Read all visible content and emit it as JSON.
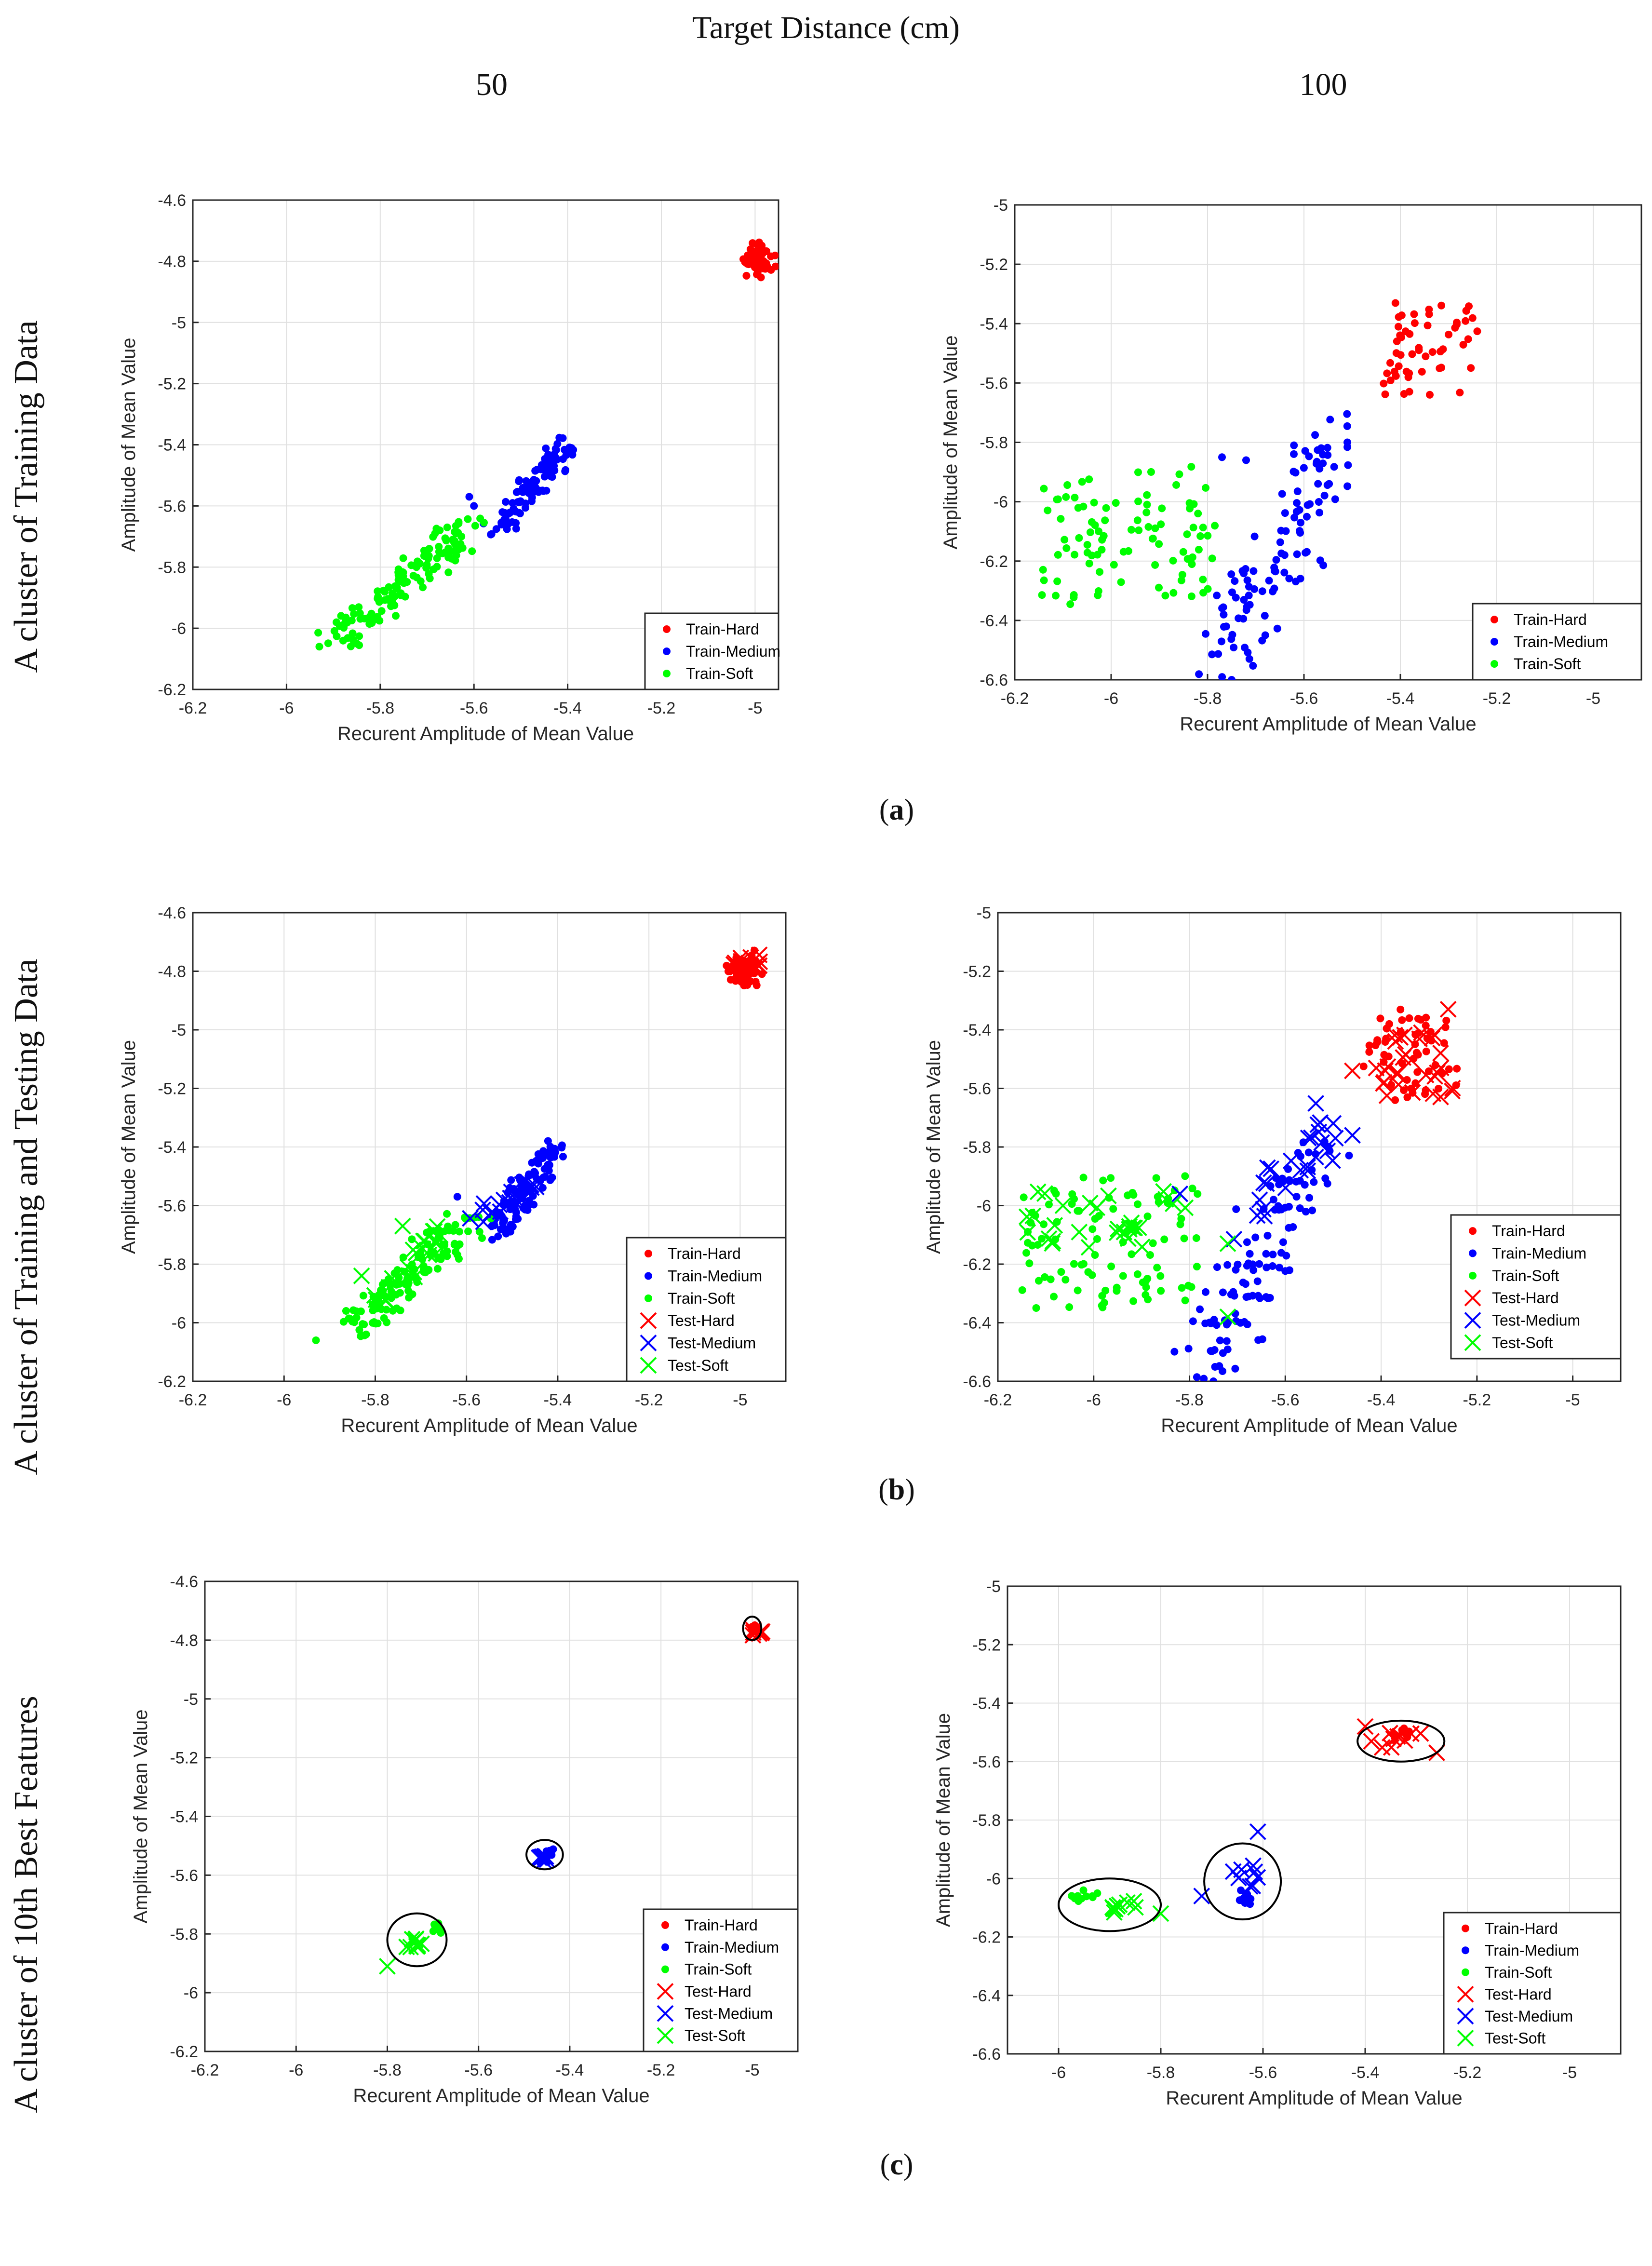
{
  "figure": {
    "top_title": "Target Distance (cm)",
    "column_headers": [
      "50",
      "100"
    ],
    "row_labels": [
      "A cluster of Training Data",
      "A cluster of Training and Testing Data",
      "A cluster of 10th Best Features"
    ],
    "sub_labels": [
      "a",
      "b",
      "c"
    ]
  },
  "colors": {
    "hard": "#ff0000",
    "medium": "#0000ff",
    "soft": "#00ff00",
    "axis": "#262626",
    "grid": "#e0e0e0"
  },
  "chart_data": [
    {
      "id": "a-50",
      "type": "scatter",
      "xlabel": "Recurent Amplitude of Mean Value",
      "ylabel": "Amplitude of Mean Value",
      "xlim": [
        -6.2,
        -4.95
      ],
      "ylim": [
        -6.2,
        -4.6
      ],
      "xticks": [
        -6.2,
        -6,
        -5.8,
        -5.6,
        -5.4,
        -5.2,
        -5
      ],
      "yticks": [
        -6.2,
        -6,
        -5.8,
        -5.6,
        -5.4,
        -5.2,
        -5,
        -4.8,
        -4.6
      ],
      "legend": [
        "Train-Hard",
        "Train-Medium",
        "Train-Soft"
      ],
      "series": [
        {
          "name": "Train-Hard",
          "cls": "hard",
          "marker": "dot",
          "gen": {
            "type": "blob",
            "n": 80,
            "cx": -4.995,
            "cy": -4.795,
            "sx": 0.03,
            "sy": 0.05,
            "seed": 11
          }
        },
        {
          "name": "Train-Medium",
          "cls": "medium",
          "marker": "dot",
          "gen": {
            "type": "line",
            "n": 110,
            "x0": -5.55,
            "y0": -5.68,
            "x1": -5.4,
            "y1": -5.4,
            "jx": 0.035,
            "jy": 0.04,
            "seed": 12
          },
          "extra": [
            [
              -5.61,
              -5.57
            ],
            [
              -5.6,
              -5.6
            ]
          ]
        },
        {
          "name": "Train-Soft",
          "cls": "soft",
          "marker": "dot",
          "gen": {
            "type": "line",
            "n": 130,
            "x0": -5.9,
            "y0": -6.05,
            "x1": -5.6,
            "y1": -5.66,
            "jx": 0.05,
            "jy": 0.05,
            "seed": 13
          },
          "extra": [
            [
              -5.93,
              -6.06
            ],
            [
              -5.85,
              -6.05
            ]
          ]
        }
      ]
    },
    {
      "id": "a-100",
      "type": "scatter",
      "xlabel": "Recurent Amplitude of Mean Value",
      "ylabel": "Amplitude of Mean Value",
      "xlim": [
        -6.2,
        -4.9
      ],
      "ylim": [
        -6.6,
        -5.0
      ],
      "xticks": [
        -6.2,
        -6,
        -5.8,
        -5.6,
        -5.4,
        -5.2,
        -5
      ],
      "yticks": [
        -6.6,
        -6.4,
        -6.2,
        -6,
        -5.8,
        -5.6,
        -5.4,
        -5.2,
        -5
      ],
      "legend": [
        "Train-Hard",
        "Train-Medium",
        "Train-Soft"
      ],
      "series": [
        {
          "name": "Train-Hard",
          "cls": "hard",
          "marker": "dot",
          "gen": {
            "type": "box",
            "n": 55,
            "x0": -5.44,
            "x1": -5.24,
            "y0": -5.64,
            "y1": -5.33,
            "seed": 21
          }
        },
        {
          "name": "Train-Medium",
          "cls": "medium",
          "marker": "dot",
          "gen": {
            "type": "line",
            "n": 110,
            "x0": -5.78,
            "y0": -6.55,
            "x1": -5.53,
            "y1": -5.78,
            "jx": 0.07,
            "jy": 0.12,
            "seed": 22
          },
          "extra": [
            [
              -5.75,
              -6.6
            ],
            [
              -5.51,
              -5.8
            ],
            [
              -5.72,
              -5.86
            ],
            [
              -5.77,
              -5.85
            ]
          ]
        },
        {
          "name": "Train-Soft",
          "cls": "soft",
          "marker": "dot",
          "gen": {
            "type": "box",
            "n": 95,
            "x0": -6.15,
            "x1": -5.78,
            "y0": -6.35,
            "y1": -5.88,
            "seed": 23
          }
        }
      ]
    },
    {
      "id": "b-50",
      "type": "scatter",
      "xlabel": "Recurent Amplitude of Mean Value",
      "ylabel": "Amplitude of Mean Value",
      "xlim": [
        -6.2,
        -4.9
      ],
      "ylim": [
        -6.2,
        -4.6
      ],
      "xticks": [
        -6.2,
        -6,
        -5.8,
        -5.6,
        -5.4,
        -5.2,
        -5
      ],
      "yticks": [
        -6.2,
        -6,
        -5.8,
        -5.6,
        -5.4,
        -5.2,
        -5,
        -4.8,
        -4.6
      ],
      "legend": [
        "Train-Hard",
        "Train-Medium",
        "Train-Soft",
        "Test-Hard",
        "Test-Medium",
        "Test-Soft"
      ],
      "series": [
        {
          "name": "Train-Hard",
          "cls": "hard",
          "marker": "dot",
          "gen": {
            "type": "blob",
            "n": 80,
            "cx": -4.995,
            "cy": -4.795,
            "sx": 0.03,
            "sy": 0.05,
            "seed": 31
          }
        },
        {
          "name": "Train-Medium",
          "cls": "medium",
          "marker": "dot",
          "gen": {
            "type": "line",
            "n": 110,
            "x0": -5.53,
            "y0": -5.68,
            "x1": -5.4,
            "y1": -5.4,
            "jx": 0.035,
            "jy": 0.04,
            "seed": 32
          },
          "extra": [
            [
              -5.62,
              -5.57
            ]
          ]
        },
        {
          "name": "Train-Soft",
          "cls": "soft",
          "marker": "dot",
          "gen": {
            "type": "line",
            "n": 130,
            "x0": -5.85,
            "y0": -6.02,
            "x1": -5.6,
            "y1": -5.66,
            "jx": 0.05,
            "jy": 0.05,
            "seed": 33
          },
          "extra": [
            [
              -5.93,
              -6.06
            ],
            [
              -5.82,
              -6.04
            ]
          ]
        },
        {
          "name": "Test-Hard",
          "cls": "hard",
          "marker": "x",
          "gen": {
            "type": "blob",
            "n": 22,
            "cx": -4.985,
            "cy": -4.775,
            "sx": 0.035,
            "sy": 0.03,
            "seed": 34
          }
        },
        {
          "name": "Test-Medium",
          "cls": "medium",
          "marker": "x",
          "gen": {
            "type": "line",
            "n": 18,
            "x0": -5.58,
            "y0": -5.65,
            "x1": -5.44,
            "y1": -5.53,
            "jx": 0.02,
            "jy": 0.03,
            "seed": 35
          }
        },
        {
          "name": "Test-Soft",
          "cls": "soft",
          "marker": "x",
          "gen": {
            "type": "line",
            "n": 26,
            "x0": -5.83,
            "y0": -5.98,
            "x1": -5.63,
            "y1": -5.66,
            "jx": 0.04,
            "jy": 0.04,
            "seed": 36
          },
          "extra": [
            [
              -5.83,
              -5.84
            ],
            [
              -5.74,
              -5.67
            ]
          ]
        }
      ]
    },
    {
      "id": "b-100",
      "type": "scatter",
      "xlabel": "Recurent Amplitude of Mean Value",
      "ylabel": "Amplitude of Mean Value",
      "xlim": [
        -6.2,
        -4.9
      ],
      "ylim": [
        -6.6,
        -5.0
      ],
      "xticks": [
        -6.2,
        -6,
        -5.8,
        -5.6,
        -5.4,
        -5.2,
        -5
      ],
      "yticks": [
        -6.6,
        -6.4,
        -6.2,
        -6,
        -5.8,
        -5.6,
        -5.4,
        -5.2,
        -5
      ],
      "legend": [
        "Train-Hard",
        "Train-Medium",
        "Train-Soft",
        "Test-Hard",
        "Test-Medium",
        "Test-Soft"
      ],
      "series": [
        {
          "name": "Train-Hard",
          "cls": "hard",
          "marker": "dot",
          "gen": {
            "type": "box",
            "n": 55,
            "x0": -5.44,
            "x1": -5.24,
            "y0": -5.64,
            "y1": -5.33,
            "seed": 41
          }
        },
        {
          "name": "Train-Medium",
          "cls": "medium",
          "marker": "dot",
          "gen": {
            "type": "line",
            "n": 110,
            "x0": -5.78,
            "y0": -6.55,
            "x1": -5.53,
            "y1": -5.78,
            "jx": 0.07,
            "jy": 0.12,
            "seed": 42
          },
          "extra": [
            [
              -5.75,
              -6.6
            ],
            [
              -5.51,
              -5.8
            ]
          ]
        },
        {
          "name": "Train-Soft",
          "cls": "soft",
          "marker": "dot",
          "gen": {
            "type": "box",
            "n": 95,
            "x0": -6.15,
            "x1": -5.78,
            "y0": -6.35,
            "y1": -5.88,
            "seed": 43
          }
        },
        {
          "name": "Test-Hard",
          "cls": "hard",
          "marker": "x",
          "gen": {
            "type": "box",
            "n": 30,
            "x0": -5.42,
            "x1": -5.25,
            "y0": -5.63,
            "y1": -5.4,
            "seed": 44
          },
          "extra": [
            [
              -5.26,
              -5.33
            ],
            [
              -5.46,
              -5.54
            ]
          ]
        },
        {
          "name": "Test-Medium",
          "cls": "medium",
          "marker": "x",
          "gen": {
            "type": "line",
            "n": 26,
            "x0": -5.72,
            "y0": -6.12,
            "x1": -5.5,
            "y1": -5.72,
            "jx": 0.04,
            "jy": 0.08,
            "seed": 45
          },
          "extra": [
            [
              -5.82,
              -5.96
            ],
            [
              -5.46,
              -5.76
            ]
          ]
        },
        {
          "name": "Test-Soft",
          "cls": "soft",
          "marker": "x",
          "gen": {
            "type": "box",
            "n": 30,
            "x0": -6.14,
            "x1": -5.8,
            "y0": -6.15,
            "y1": -5.95,
            "seed": 46
          },
          "extra": [
            [
              -5.72,
              -6.13
            ],
            [
              -5.72,
              -6.38
            ]
          ]
        }
      ]
    },
    {
      "id": "c-50",
      "type": "scatter",
      "xlabel": "Recurent Amplitude of Mean Value",
      "ylabel": "Amplitude of Mean Value",
      "xlim": [
        -6.2,
        -4.9
      ],
      "ylim": [
        -6.2,
        -4.6
      ],
      "xticks": [
        -6.2,
        -6,
        -5.8,
        -5.6,
        -5.4,
        -5.2,
        -5
      ],
      "yticks": [
        -6.2,
        -6,
        -5.8,
        -5.6,
        -5.4,
        -5.2,
        -5,
        -4.8,
        -4.6
      ],
      "legend": [
        "Train-Hard",
        "Train-Medium",
        "Train-Soft",
        "Test-Hard",
        "Test-Medium",
        "Test-Soft"
      ],
      "ellipses": [
        {
          "cx": -5.0,
          "cy": -4.76,
          "rx": 0.02,
          "ry": 0.04
        },
        {
          "cx": -5.455,
          "cy": -5.53,
          "rx": 0.04,
          "ry": 0.05
        },
        {
          "cx": -5.735,
          "cy": -5.82,
          "rx": 0.065,
          "ry": 0.09
        }
      ],
      "series": [
        {
          "name": "Train-Hard",
          "cls": "hard",
          "marker": "dot",
          "gen": {
            "type": "blob",
            "n": 8,
            "cx": -4.995,
            "cy": -4.765,
            "sx": 0.01,
            "sy": 0.015,
            "seed": 51
          }
        },
        {
          "name": "Train-Medium",
          "cls": "medium",
          "marker": "dot",
          "gen": {
            "type": "blob",
            "n": 10,
            "cx": -5.445,
            "cy": -5.525,
            "sx": 0.012,
            "sy": 0.015,
            "seed": 52
          }
        },
        {
          "name": "Train-Soft",
          "cls": "soft",
          "marker": "dot",
          "gen": {
            "type": "blob",
            "n": 10,
            "cx": -5.69,
            "cy": -5.78,
            "sx": 0.015,
            "sy": 0.015,
            "seed": 53
          }
        },
        {
          "name": "Test-Hard",
          "cls": "hard",
          "marker": "x",
          "gen": {
            "type": "blob",
            "n": 8,
            "cx": -4.99,
            "cy": -4.775,
            "sx": 0.015,
            "sy": 0.012,
            "seed": 54
          }
        },
        {
          "name": "Test-Medium",
          "cls": "medium",
          "marker": "x",
          "gen": {
            "type": "blob",
            "n": 10,
            "cx": -5.455,
            "cy": -5.54,
            "sx": 0.015,
            "sy": 0.015,
            "seed": 55
          }
        },
        {
          "name": "Test-Soft",
          "cls": "soft",
          "marker": "x",
          "gen": {
            "type": "blob",
            "n": 10,
            "cx": -5.74,
            "cy": -5.83,
            "sx": 0.025,
            "sy": 0.025,
            "seed": 56
          },
          "extra": [
            [
              -5.8,
              -5.91
            ]
          ]
        }
      ]
    },
    {
      "id": "c-100",
      "type": "scatter",
      "xlabel": "Recurent Amplitude of Mean Value",
      "ylabel": "Amplitude of Mean Value",
      "xlim": [
        -6.1,
        -4.9
      ],
      "ylim": [
        -6.6,
        -5.0
      ],
      "xticks": [
        -6,
        -5.8,
        -5.6,
        -5.4,
        -5.2,
        -5
      ],
      "yticks": [
        -6.6,
        -6.4,
        -6.2,
        -6,
        -5.8,
        -5.6,
        -5.4,
        -5.2,
        -5
      ],
      "legend": [
        "Train-Hard",
        "Train-Medium",
        "Train-Soft",
        "Test-Hard",
        "Test-Medium",
        "Test-Soft"
      ],
      "ellipses": [
        {
          "cx": -5.33,
          "cy": -5.53,
          "rx": 0.085,
          "ry": 0.07
        },
        {
          "cx": -5.64,
          "cy": -6.01,
          "rx": 0.075,
          "ry": 0.13
        },
        {
          "cx": -5.9,
          "cy": -6.09,
          "rx": 0.1,
          "ry": 0.09
        }
      ],
      "series": [
        {
          "name": "Train-Hard",
          "cls": "hard",
          "marker": "dot",
          "gen": {
            "type": "blob",
            "n": 8,
            "cx": -5.33,
            "cy": -5.51,
            "sx": 0.03,
            "sy": 0.02,
            "seed": 61
          }
        },
        {
          "name": "Train-Medium",
          "cls": "medium",
          "marker": "dot",
          "gen": {
            "type": "blob",
            "n": 10,
            "cx": -5.63,
            "cy": -6.07,
            "sx": 0.025,
            "sy": 0.025,
            "seed": 62
          }
        },
        {
          "name": "Train-Soft",
          "cls": "soft",
          "marker": "dot",
          "gen": {
            "type": "blob",
            "n": 10,
            "cx": -5.95,
            "cy": -6.06,
            "sx": 0.025,
            "sy": 0.02,
            "seed": 63
          }
        },
        {
          "name": "Test-Hard",
          "cls": "hard",
          "marker": "x",
          "gen": {
            "type": "blob",
            "n": 10,
            "cx": -5.33,
            "cy": -5.52,
            "sx": 0.05,
            "sy": 0.03,
            "seed": 64
          },
          "extra": [
            [
              -5.4,
              -5.48
            ],
            [
              -5.26,
              -5.57
            ]
          ]
        },
        {
          "name": "Test-Medium",
          "cls": "medium",
          "marker": "x",
          "gen": {
            "type": "blob",
            "n": 8,
            "cx": -5.62,
            "cy": -5.97,
            "sx": 0.04,
            "sy": 0.06,
            "seed": 65
          },
          "extra": [
            [
              -5.72,
              -6.06
            ],
            [
              -5.61,
              -5.84
            ]
          ]
        },
        {
          "name": "Test-Soft",
          "cls": "soft",
          "marker": "x",
          "gen": {
            "type": "blob",
            "n": 10,
            "cx": -5.89,
            "cy": -6.1,
            "sx": 0.04,
            "sy": 0.03,
            "seed": 66
          },
          "extra": [
            [
              -5.8,
              -6.12
            ]
          ]
        }
      ]
    }
  ]
}
